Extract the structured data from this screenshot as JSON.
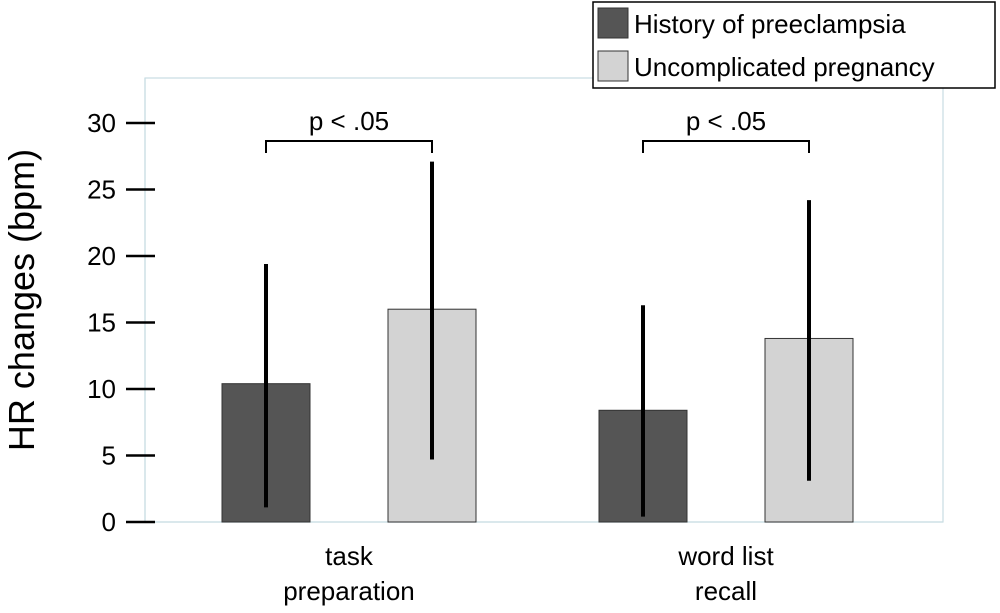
{
  "chart_data": {
    "type": "bar",
    "title": "",
    "ylabel": "HR changes (bpm)",
    "xlabel": "",
    "ylim": [
      0,
      33
    ],
    "yticks": [
      0,
      5,
      10,
      15,
      20,
      25,
      30
    ],
    "categories": [
      {
        "lines": [
          "task",
          "preparation"
        ]
      },
      {
        "lines": [
          "word list",
          "recall"
        ]
      }
    ],
    "series": [
      {
        "name": "History of preeclampsia",
        "color": "#555555",
        "values": [
          10.4,
          8.4
        ],
        "error_low": [
          1.1,
          0.4
        ],
        "error_high": [
          19.4,
          16.3
        ]
      },
      {
        "name": "Uncomplicated pregnancy",
        "color": "#d3d3d3",
        "values": [
          16.0,
          13.8
        ],
        "error_low": [
          4.7,
          3.1
        ],
        "error_high": [
          27.1,
          24.2
        ]
      }
    ],
    "annotations": [
      {
        "text": "p < .05",
        "category": 0
      },
      {
        "text": "p < .05",
        "category": 1
      }
    ],
    "legend": "top-right",
    "grid": false
  }
}
